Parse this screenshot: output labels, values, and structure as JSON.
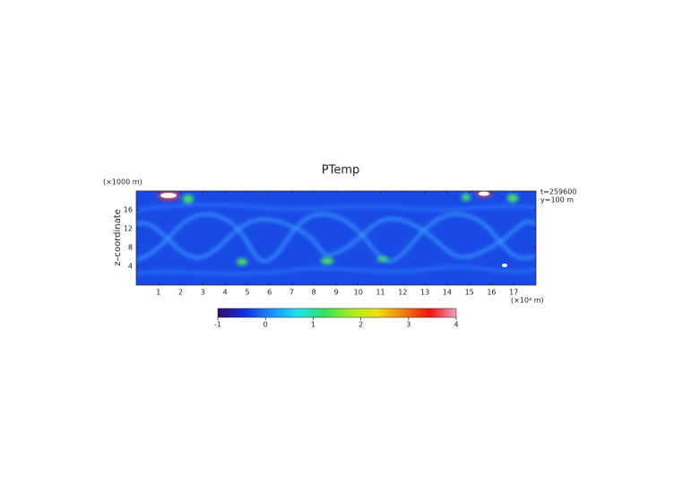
{
  "chart_data": {
    "type": "heatmap",
    "title": "PTemp",
    "y_label": "z–coordinate",
    "y_unit": "(×1000 m)",
    "x_unit": "(×10⁴ m)",
    "annotations": [
      "t=259600",
      "y=100 m"
    ],
    "xlim": [
      0,
      18
    ],
    "xticks": [
      1,
      2,
      3,
      4,
      5,
      6,
      7,
      8,
      9,
      10,
      11,
      12,
      13,
      14,
      15,
      16,
      17
    ],
    "ylim": [
      0,
      20
    ],
    "yticks": [
      4,
      8,
      12,
      16
    ],
    "colorbar": {
      "lim": [
        -1,
        4
      ],
      "ticks": [
        -1,
        0,
        1,
        2,
        3,
        4
      ],
      "colors": [
        "#3a0a6a",
        "#1030e0",
        "#1a8cff",
        "#20e0f0",
        "#30e060",
        "#a0f020",
        "#f0e010",
        "#f08010",
        "#f01010",
        "#f0a0c0"
      ]
    }
  }
}
